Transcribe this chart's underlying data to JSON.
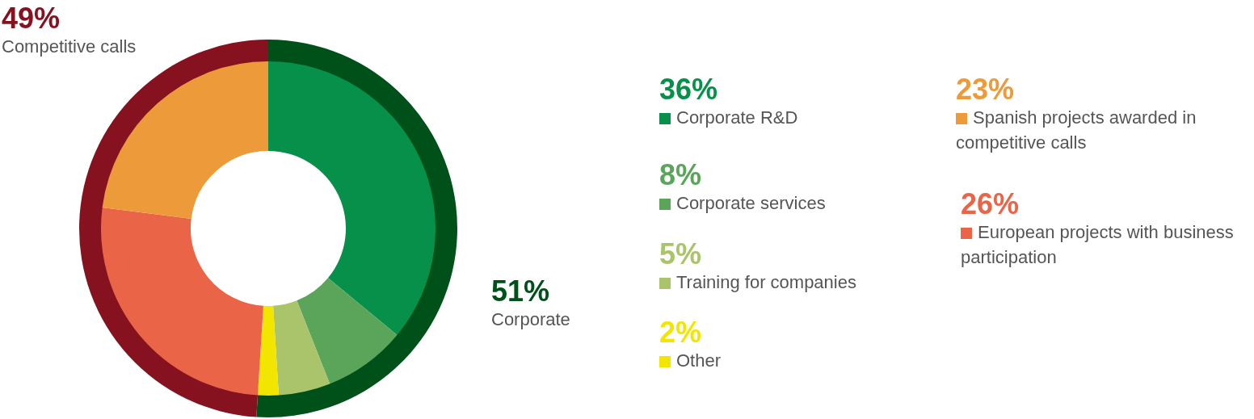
{
  "chart_data": [
    {
      "type": "donut",
      "categories": [
        "Corporate",
        "Competitive calls"
      ],
      "values": [
        51,
        49
      ],
      "colors": [
        "#00501a",
        "#86121f"
      ],
      "value_labels": [
        "51%",
        "49%"
      ]
    },
    {
      "type": "donut",
      "categories": [
        "Corporate R&D",
        "Corporate services",
        "Training for companies",
        "Other",
        "European projects with business participation",
        "Spanish projects awarded in competitive calls"
      ],
      "values": [
        36,
        8,
        5,
        2,
        26,
        23
      ],
      "colors": [
        "#06904a",
        "#5aa55a",
        "#a9c46a",
        "#f2e600",
        "#ea6548",
        "#ec9a3a"
      ],
      "value_labels": [
        "36%",
        "8%",
        "5%",
        "2%",
        "26%",
        "23%"
      ],
      "legend": "right"
    }
  ]
}
